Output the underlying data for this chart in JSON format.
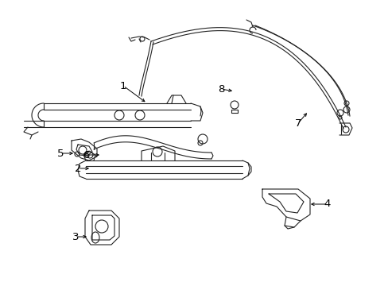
{
  "bg_color": "#ffffff",
  "lc": "#222222",
  "lw": 0.8,
  "figsize": [
    4.89,
    3.6
  ],
  "dpi": 100
}
